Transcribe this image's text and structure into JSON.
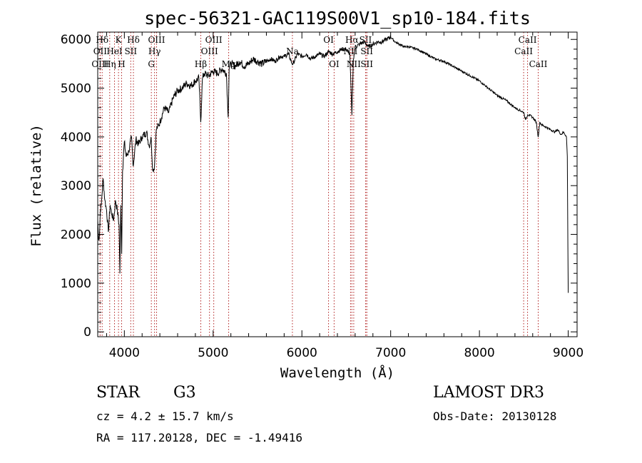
{
  "chart_data": {
    "type": "line",
    "title": "spec-56321-GAC119S00V1_sp10-184.fits",
    "xlabel": "Wavelength (Å)",
    "ylabel": "Flux (relative)",
    "xlim": [
      3700,
      9100
    ],
    "ylim": [
      -100,
      6150
    ],
    "xticks": [
      4000,
      5000,
      6000,
      7000,
      8000,
      9000
    ],
    "xtick_labels": [
      "4000",
      "5000",
      "6000",
      "7000",
      "8000",
      "9000"
    ],
    "yticks": [
      0,
      1000,
      2000,
      3000,
      4000,
      5000,
      6000
    ],
    "ytick_labels": [
      "0",
      "1000",
      "2000",
      "3000",
      "4000",
      "5000",
      "6000"
    ],
    "grid": false,
    "series": [
      {
        "name": "flux",
        "x": [
          3700,
          3710,
          3720,
          3730,
          3740,
          3760,
          3780,
          3800,
          3820,
          3840,
          3860,
          3880,
          3900,
          3920,
          3940,
          3950,
          3960,
          3970,
          3980,
          4000,
          4020,
          4050,
          4080,
          4100,
          4130,
          4160,
          4200,
          4250,
          4280,
          4300,
          4320,
          4340,
          4360,
          4400,
          4450,
          4500,
          4550,
          4600,
          4650,
          4700,
          4750,
          4800,
          4840,
          4860,
          4880,
          4900,
          4950,
          5000,
          5050,
          5100,
          5150,
          5170,
          5180,
          5200,
          5250,
          5300,
          5350,
          5400,
          5450,
          5500,
          5550,
          5600,
          5650,
          5700,
          5750,
          5800,
          5850,
          5890,
          5900,
          5950,
          6000,
          6050,
          6100,
          6150,
          6200,
          6250,
          6300,
          6350,
          6400,
          6450,
          6500,
          6540,
          6563,
          6580,
          6600,
          6650,
          6700,
          6750,
          6800,
          6850,
          6900,
          6950,
          7000,
          7050,
          7100,
          7150,
          7200,
          7300,
          7400,
          7500,
          7600,
          7700,
          7800,
          7900,
          8000,
          8100,
          8200,
          8300,
          8400,
          8450,
          8500,
          8520,
          8542,
          8560,
          8600,
          8640,
          8662,
          8680,
          8700,
          8750,
          8800,
          8850,
          8880,
          8900,
          8920,
          8950,
          8980,
          8990,
          9000
        ],
        "values": [
          2300,
          1900,
          2000,
          2500,
          2600,
          3150,
          2700,
          2500,
          2050,
          2600,
          2400,
          2300,
          2700,
          2500,
          2200,
          1200,
          2600,
          1600,
          3300,
          3900,
          3600,
          3700,
          4000,
          3400,
          3950,
          3850,
          4000,
          4100,
          3800,
          4000,
          3300,
          3400,
          4150,
          4300,
          4600,
          4500,
          4800,
          4950,
          5000,
          5100,
          5050,
          5150,
          5200,
          4300,
          5200,
          5300,
          5250,
          5350,
          5300,
          5400,
          5300,
          4400,
          5400,
          5500,
          5450,
          5550,
          5450,
          5500,
          5600,
          5550,
          5500,
          5550,
          5600,
          5550,
          5650,
          5650,
          5700,
          5500,
          5500,
          5700,
          5650,
          5700,
          5600,
          5650,
          5700,
          5650,
          5750,
          5700,
          5750,
          5800,
          5800,
          5700,
          4450,
          5600,
          5850,
          5900,
          5950,
          5850,
          5900,
          5950,
          5950,
          6000,
          6050,
          5950,
          5900,
          5850,
          5850,
          5800,
          5700,
          5600,
          5550,
          5450,
          5350,
          5250,
          5150,
          5000,
          4850,
          4750,
          4600,
          4550,
          4500,
          4350,
          4450,
          4450,
          4400,
          4300,
          4000,
          4300,
          4250,
          4200,
          4150,
          4100,
          4150,
          4100,
          4050,
          4100,
          4000,
          3600,
          800
        ]
      }
    ],
    "line_markers": [
      {
        "label": "Hδ",
        "x": 3750,
        "row": 1
      },
      {
        "label": "OII",
        "x": 3727,
        "row": 2
      },
      {
        "label": "OIII",
        "x": 3727,
        "row": 3
      },
      {
        "label": "K",
        "x": 3934,
        "row": 1
      },
      {
        "label": "HeI",
        "x": 3889,
        "row": 2
      },
      {
        "label": "Hη",
        "x": 3835,
        "row": 3
      },
      {
        "label": "SII",
        "x": 4072,
        "row": 2
      },
      {
        "label": "H",
        "x": 3969,
        "row": 3
      },
      {
        "label": "Hδ",
        "x": 4102,
        "row": 1
      },
      {
        "label": "OIII",
        "x": 4363,
        "row": 1
      },
      {
        "label": "Hγ",
        "x": 4340,
        "row": 2
      },
      {
        "label": "G",
        "x": 4304,
        "row": 3
      },
      {
        "label": "Hβ",
        "x": 4861,
        "row": 3
      },
      {
        "label": "OIII",
        "x": 5007,
        "row": 1
      },
      {
        "label": "OIII",
        "x": 4959,
        "row": 2
      },
      {
        "label": "Mg",
        "x": 5175,
        "row": 3
      },
      {
        "label": "Na",
        "x": 5893,
        "row": 2
      },
      {
        "label": "OI",
        "x": 6300,
        "row": 1
      },
      {
        "label": "OI",
        "x": 6363,
        "row": 3
      },
      {
        "label": "Hα",
        "x": 6563,
        "row": 1
      },
      {
        "label": "NII",
        "x": 6548,
        "row": 2
      },
      {
        "label": "NII",
        "x": 6584,
        "row": 3
      },
      {
        "label": "SII",
        "x": 6717,
        "row": 1
      },
      {
        "label": "SII",
        "x": 6731,
        "row": 2
      },
      {
        "label": "SII",
        "x": 6731,
        "row": 3
      },
      {
        "label": "CaII",
        "x": 8542,
        "row": 1
      },
      {
        "label": "CaII",
        "x": 8498,
        "row": 2
      },
      {
        "label": "CaII",
        "x": 8662,
        "row": 3
      }
    ]
  },
  "info": {
    "class_label": "STAR",
    "subclass": "G3",
    "survey": "LAMOST DR3",
    "redshift": "cz = 4.2 ± 15.7 km/s",
    "obs_date": "Obs-Date: 20130128",
    "coords": "RA = 117.20128, DEC =  -1.49416"
  }
}
